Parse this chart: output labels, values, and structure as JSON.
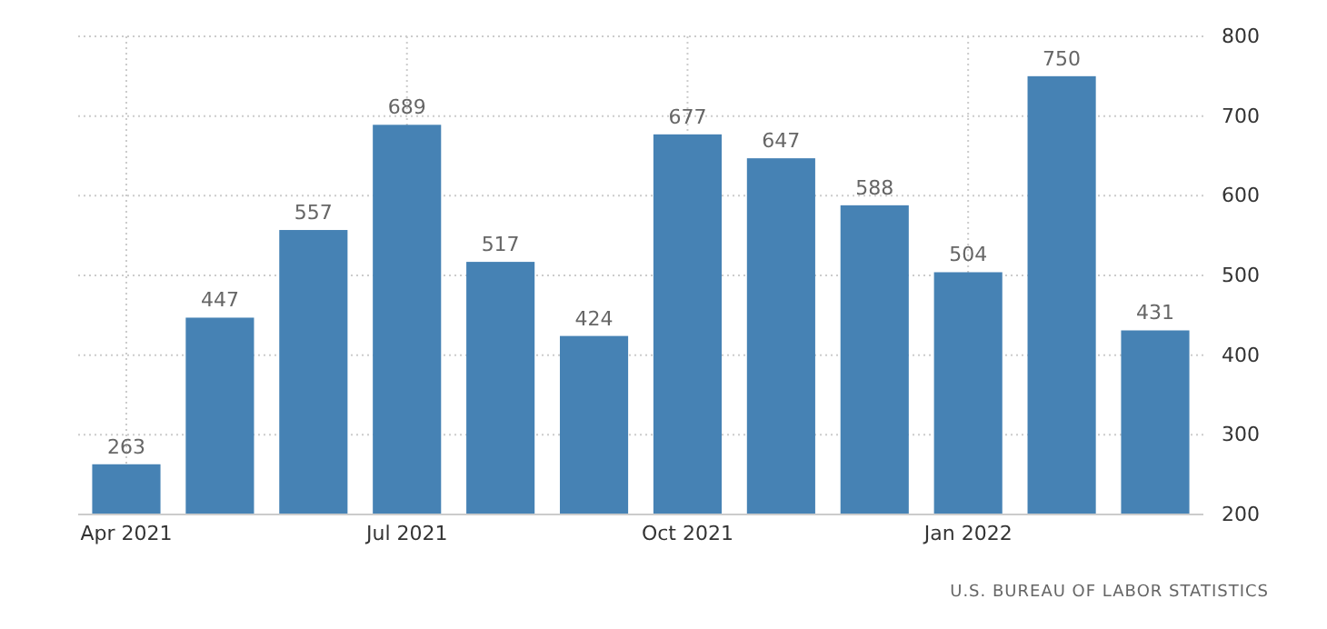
{
  "chart_data": {
    "type": "bar",
    "categories": [
      "Apr 2021",
      null,
      null,
      "Jul 2021",
      null,
      null,
      "Oct 2021",
      null,
      null,
      "Jan 2022",
      null,
      null
    ],
    "values": [
      263,
      447,
      557,
      689,
      517,
      424,
      677,
      647,
      588,
      504,
      750,
      431
    ],
    "color": "#4682b4",
    "ylim": [
      200,
      800
    ],
    "yticks": [
      200,
      300,
      400,
      500,
      600,
      700,
      800
    ],
    "grid": true,
    "data_labels": true,
    "annotations": [
      "U.S. BUREAU OF LABOR STATISTICS"
    ]
  }
}
